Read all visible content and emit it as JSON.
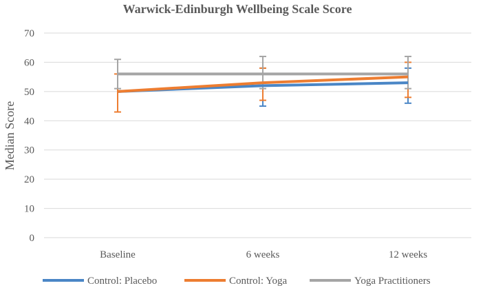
{
  "chart_data": {
    "type": "line",
    "title": "Warwick-Edinburgh Wellbeing Scale Score",
    "xlabel": "",
    "ylabel": "Median Score",
    "categories": [
      "Baseline",
      "6 weeks",
      "12 weeks"
    ],
    "ylim": [
      0,
      70
    ],
    "yticks": [
      0,
      10,
      20,
      30,
      40,
      50,
      60,
      70
    ],
    "grid": true,
    "legend_position": "bottom",
    "series": [
      {
        "name": "Control: Placebo",
        "color": "#4A86C6",
        "values": [
          50,
          52,
          53
        ],
        "err_low": [
          50,
          45,
          46
        ],
        "err_high": [
          50,
          58,
          58
        ]
      },
      {
        "name": "Control: Yoga",
        "color": "#ED7D31",
        "values": [
          50,
          53,
          55
        ],
        "err_low": [
          43,
          47,
          48
        ],
        "err_high": [
          56,
          58,
          60
        ]
      },
      {
        "name": "Yoga Practitioners",
        "color": "#A5A5A5",
        "values": [
          56,
          56,
          56
        ],
        "err_low": [
          51,
          51,
          51
        ],
        "err_high": [
          61,
          62,
          62
        ]
      }
    ]
  }
}
